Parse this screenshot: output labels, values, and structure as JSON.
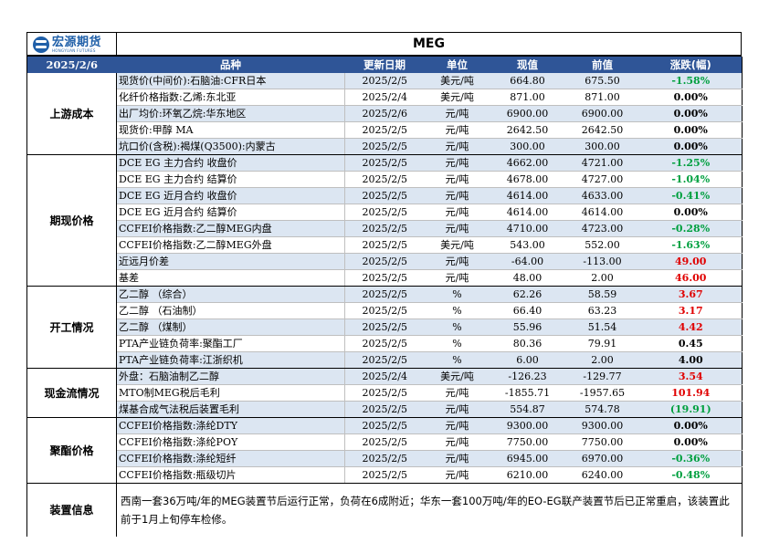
{
  "header": {
    "logo_cn": "宏源期货",
    "logo_en": "HONGYUAN FUTURES",
    "title": "MEG"
  },
  "columns": {
    "date": "2025/2/6",
    "item": "品种",
    "update": "更新日期",
    "unit": "单位",
    "current": "现值",
    "previous": "前值",
    "change": "涨跌(幅)"
  },
  "groups": [
    {
      "name": "上游成本",
      "rows": [
        {
          "item": "现货价(中间价):石脑油:CFR日本",
          "date": "2025/2/5",
          "unit": "美元/吨",
          "cur": "664.80",
          "prev": "675.50",
          "chg": "-1.58%",
          "dir": "neg"
        },
        {
          "item": "化纤价格指数:乙烯:东北亚",
          "date": "2025/2/4",
          "unit": "美元/吨",
          "cur": "871.00",
          "prev": "871.00",
          "chg": "0.00%",
          "dir": "zero"
        },
        {
          "item": "出厂均价:环氧乙烷:华东地区",
          "date": "2025/2/6",
          "unit": "元/吨",
          "cur": "6900.00",
          "prev": "6900.00",
          "chg": "0.00%",
          "dir": "zero"
        },
        {
          "item": "现货价:甲醇 MA",
          "date": "2025/2/5",
          "unit": "元/吨",
          "cur": "2642.50",
          "prev": "2642.50",
          "chg": "0.00%",
          "dir": "zero"
        },
        {
          "item": "坑口价(含税):褐煤(Q3500):内蒙古",
          "date": "2025/2/5",
          "unit": "元/吨",
          "cur": "300.00",
          "prev": "300.00",
          "chg": "0.00%",
          "dir": "zero"
        }
      ]
    },
    {
      "name": "期现价格",
      "rows": [
        {
          "item": "DCE EG 主力合约 收盘价",
          "date": "2025/2/5",
          "unit": "元/吨",
          "cur": "4662.00",
          "prev": "4721.00",
          "chg": "-1.25%",
          "dir": "neg"
        },
        {
          "item": "DCE EG 主力合约 结算价",
          "date": "2025/2/5",
          "unit": "元/吨",
          "cur": "4678.00",
          "prev": "4727.00",
          "chg": "-1.04%",
          "dir": "neg"
        },
        {
          "item": "DCE EG 近月合约 收盘价",
          "date": "2025/2/5",
          "unit": "元/吨",
          "cur": "4614.00",
          "prev": "4633.00",
          "chg": "-0.41%",
          "dir": "neg"
        },
        {
          "item": "DCE EG 近月合约 结算价",
          "date": "2025/2/5",
          "unit": "元/吨",
          "cur": "4614.00",
          "prev": "4614.00",
          "chg": "0.00%",
          "dir": "zero"
        },
        {
          "item": "CCFEI价格指数:乙二醇MEG内盘",
          "date": "2025/2/5",
          "unit": "元/吨",
          "cur": "4710.00",
          "prev": "4723.00",
          "chg": "-0.28%",
          "dir": "neg"
        },
        {
          "item": "CCFEI价格指数:乙二醇MEG外盘",
          "date": "2025/2/5",
          "unit": "美元/吨",
          "cur": "543.00",
          "prev": "552.00",
          "chg": "-1.63%",
          "dir": "neg"
        },
        {
          "item": "近远月价差",
          "date": "2025/2/5",
          "unit": "元/吨",
          "cur": "-64.00",
          "prev": "-113.00",
          "chg": "49.00",
          "dir": "pos"
        },
        {
          "item": "基差",
          "date": "2025/2/5",
          "unit": "元/吨",
          "cur": "48.00",
          "prev": "2.00",
          "chg": "46.00",
          "dir": "pos"
        }
      ]
    },
    {
      "name": "开工情况",
      "rows": [
        {
          "item": "乙二醇 （综合）",
          "date": "2025/2/5",
          "unit": "%",
          "cur": "62.26",
          "prev": "58.59",
          "chg": "3.67",
          "dir": "pos"
        },
        {
          "item": "乙二醇 （石油制）",
          "date": "2025/2/5",
          "unit": "%",
          "cur": "66.40",
          "prev": "63.23",
          "chg": "3.17",
          "dir": "pos"
        },
        {
          "item": "乙二醇 （煤制）",
          "date": "2025/2/5",
          "unit": "%",
          "cur": "55.96",
          "prev": "51.54",
          "chg": "4.42",
          "dir": "pos"
        },
        {
          "item": "PTA产业链负荷率:聚酯工厂",
          "date": "2025/2/5",
          "unit": "%",
          "cur": "80.36",
          "prev": "79.91",
          "chg": "0.45",
          "dir": "zero"
        },
        {
          "item": "PTA产业链负荷率:江浙织机",
          "date": "2025/2/5",
          "unit": "%",
          "cur": "6.00",
          "prev": "2.00",
          "chg": "4.00",
          "dir": "zero"
        }
      ]
    },
    {
      "name": "现金流情况",
      "rows": [
        {
          "item": "外盘：石脑油制乙二醇",
          "date": "2025/2/4",
          "unit": "美元/吨",
          "cur": "-126.23",
          "prev": "-129.77",
          "chg": "3.54",
          "dir": "pos"
        },
        {
          "item": "MTO制MEG税后毛利",
          "date": "2025/2/5",
          "unit": "元/吨",
          "cur": "-1855.71",
          "prev": "-1957.65",
          "chg": "101.94",
          "dir": "pos"
        },
        {
          "item": "煤基合成气法税后装置毛利",
          "date": "2025/2/5",
          "unit": "元/吨",
          "cur": "554.87",
          "prev": "574.78",
          "chg": "(19.91)",
          "dir": "neg"
        }
      ]
    },
    {
      "name": "聚酯价格",
      "rows": [
        {
          "item": "CCFEI价格指数:涤纶DTY",
          "date": "2025/2/5",
          "unit": "元/吨",
          "cur": "9300.00",
          "prev": "9300.00",
          "chg": "0.00%",
          "dir": "zero"
        },
        {
          "item": "CCFEI价格指数:涤纶POY",
          "date": "2025/2/5",
          "unit": "元/吨",
          "cur": "7750.00",
          "prev": "7750.00",
          "chg": "0.00%",
          "dir": "zero"
        },
        {
          "item": "CCFEI价格指数:涤纶短纤",
          "date": "2025/2/5",
          "unit": "元/吨",
          "cur": "6945.00",
          "prev": "6970.00",
          "chg": "-0.36%",
          "dir": "neg"
        },
        {
          "item": "CCFEI价格指数:瓶级切片",
          "date": "2025/2/5",
          "unit": "元/吨",
          "cur": "6210.00",
          "prev": "6240.00",
          "chg": "-0.48%",
          "dir": "neg"
        }
      ]
    }
  ],
  "note": {
    "label": "装置信息",
    "text": "西南一套36万吨/年的MEG装置节后运行正常，负荷在6成附近；华东一套100万吨/年的EO-EG联产装置节后已正常重启，该装置此前于1月上旬停车检修。"
  },
  "colors": {
    "header_bg": "#2f5597",
    "row_shade": "#dce6f2",
    "up": "#e00000",
    "down": "#00a040",
    "brand": "#1f5fa8"
  }
}
